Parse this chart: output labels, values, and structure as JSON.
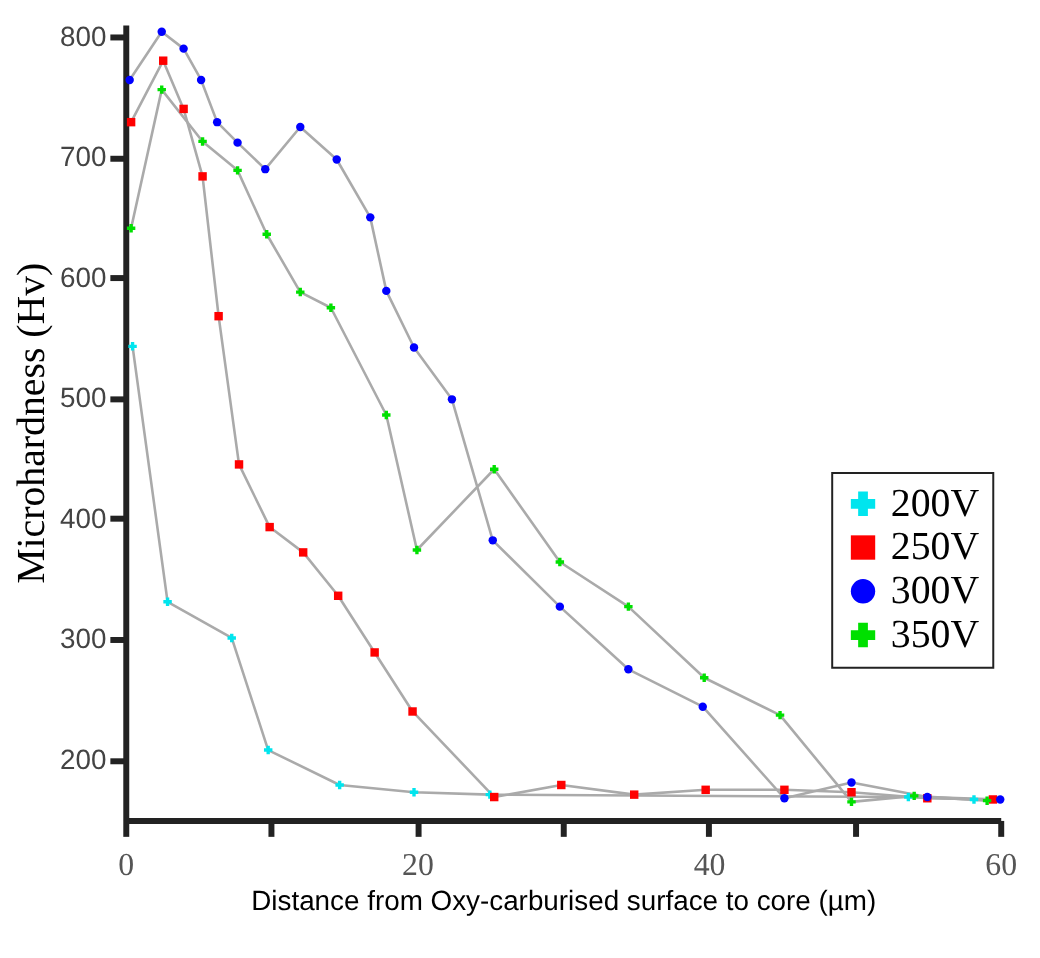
{
  "chart_data": {
    "type": "line",
    "xlabel": "Distance from Oxy-carburised surface to core (µm)",
    "ylabel": "Microhardness (Hv)",
    "xlim": [
      0,
      60
    ],
    "ylim": [
      150,
      810
    ],
    "xticks": [
      0,
      {
        "value": 10,
        "label": null
      },
      20,
      {
        "value": 30,
        "label": null
      },
      40,
      {
        "value": 50,
        "label": null
      },
      60
    ],
    "yticks": [
      200,
      300,
      400,
      500,
      600,
      700,
      800
    ],
    "grid": false,
    "legend": "right",
    "line_style": "solid",
    "series": [
      {
        "name": "200V",
        "color": "#00e5ee",
        "marker": "cross",
        "x": [
          0.5,
          2.9,
          7.3,
          9.8,
          14.7,
          19.8,
          25,
          53.7,
          58.2
        ],
        "values": [
          543,
          331,
          301,
          208,
          179,
          173,
          171,
          169,
          167
        ]
      },
      {
        "name": "250V",
        "color": "#ff0000",
        "marker": "square",
        "x": [
          0.4,
          2.6,
          4,
          5.3,
          6.4,
          7.8,
          9.9,
          12.2,
          14.6,
          17.1,
          19.7,
          25.3,
          29.9,
          34.9,
          39.8,
          45.2,
          49.8,
          55,
          59.5
        ],
        "values": [
          729,
          780,
          740,
          684,
          568,
          445,
          393,
          372,
          336,
          289,
          240,
          169,
          179,
          171,
          175,
          175,
          173,
          168,
          167
        ]
      },
      {
        "name": "300V",
        "color": "#0000ff",
        "marker": "circle",
        "x": [
          0.3,
          2.5,
          4,
          5.2,
          6.3,
          7.7,
          9.6,
          12,
          14.5,
          16.8,
          17.9,
          19.8,
          22.4,
          25.2,
          29.8,
          34.5,
          39.6,
          45.2,
          49.8,
          55,
          60
        ],
        "values": [
          764,
          804,
          790,
          764,
          729,
          712,
          690,
          725,
          698,
          650,
          589,
          542,
          499,
          382,
          327,
          275,
          244,
          168,
          181,
          169,
          167
        ]
      },
      {
        "name": "350V",
        "color": "#00e000",
        "marker": "cross",
        "x": [
          0.4,
          2.5,
          5.3,
          7.7,
          9.7,
          12,
          14.1,
          17.9,
          20,
          25.3,
          29.8,
          34.5,
          39.7,
          44.9,
          49.8,
          54.1,
          59.1
        ],
        "values": [
          641,
          756,
          713,
          689,
          636,
          588,
          575,
          486,
          374,
          441,
          364,
          327,
          268,
          237,
          165,
          170,
          166
        ]
      }
    ]
  }
}
